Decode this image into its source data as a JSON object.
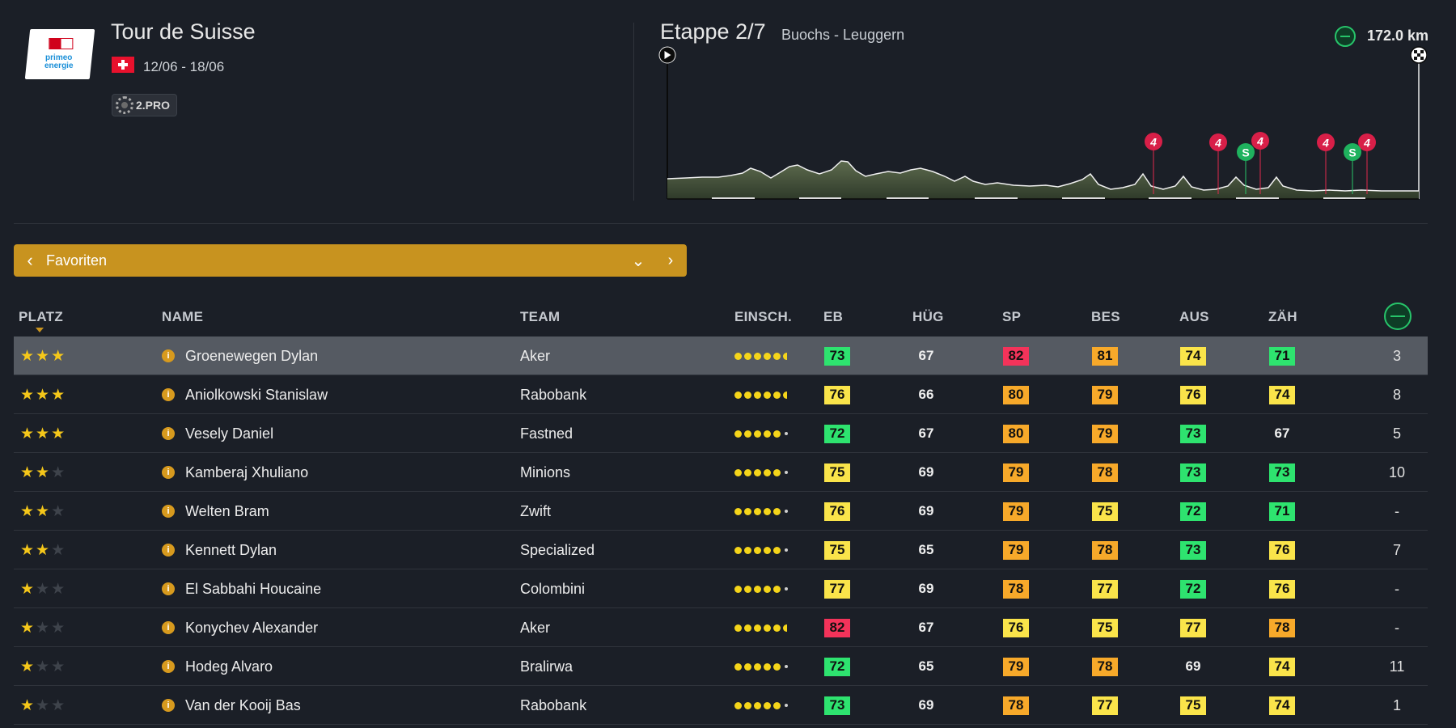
{
  "race": {
    "title": "Tour de Suisse",
    "dates": "12/06 - 18/06",
    "class_label": "2.PRO",
    "logo_text": "primeo energie"
  },
  "stage": {
    "title": "Etappe 2/7",
    "route": "Buochs - Leuggern",
    "distance": "172.0 km",
    "climb_labels": [
      "4",
      "4",
      "4",
      "4",
      "4"
    ],
    "sprint_labels": [
      "S",
      "S"
    ]
  },
  "filter": {
    "label": "Favoriten"
  },
  "columns": {
    "platz": "PLATZ",
    "name": "NAME",
    "team": "TEAM",
    "einsch": "EINSCH.",
    "eb": "EB",
    "hug": "HÜG",
    "sp": "SP",
    "bes": "BES",
    "aus": "AUS",
    "zah": "ZÄH"
  },
  "colors": {
    "green": "#2ee36f",
    "yellow": "#fae44a",
    "orange": "#f7a92a",
    "red": "#f3335a",
    "accent": "#c8931f"
  },
  "riders": [
    {
      "stars": 3,
      "name": "Groenewegen Dylan",
      "team": "Aker",
      "einsch": 5.5,
      "eb": 73,
      "hug": 67,
      "sp": 82,
      "bes": 81,
      "aus": 74,
      "zah": 71,
      "value": "3"
    },
    {
      "stars": 3,
      "name": "Aniolkowski Stanislaw",
      "team": "Rabobank",
      "einsch": 5.5,
      "eb": 76,
      "hug": 66,
      "sp": 80,
      "bes": 79,
      "aus": 76,
      "zah": 74,
      "value": "8"
    },
    {
      "stars": 3,
      "name": "Vesely Daniel",
      "team": "Fastned",
      "einsch": 5,
      "eb": 72,
      "hug": 67,
      "sp": 80,
      "bes": 79,
      "aus": 73,
      "zah": 67,
      "value": "5"
    },
    {
      "stars": 2,
      "name": "Kamberaj Xhuliano",
      "team": "Minions",
      "einsch": 5,
      "eb": 75,
      "hug": 69,
      "sp": 79,
      "bes": 78,
      "aus": 73,
      "zah": 73,
      "value": "10"
    },
    {
      "stars": 2,
      "name": "Welten Bram",
      "team": "Zwift",
      "einsch": 5,
      "eb": 76,
      "hug": 69,
      "sp": 79,
      "bes": 75,
      "aus": 72,
      "zah": 71,
      "value": "-"
    },
    {
      "stars": 2,
      "name": "Kennett Dylan",
      "team": "Specialized",
      "einsch": 5,
      "eb": 75,
      "hug": 65,
      "sp": 79,
      "bes": 78,
      "aus": 73,
      "zah": 76,
      "value": "7"
    },
    {
      "stars": 1,
      "name": "El Sabbahi Houcaine",
      "team": "Colombini",
      "einsch": 5,
      "eb": 77,
      "hug": 69,
      "sp": 78,
      "bes": 77,
      "aus": 72,
      "zah": 76,
      "value": "-"
    },
    {
      "stars": 1,
      "name": "Konychev Alexander",
      "team": "Aker",
      "einsch": 5.5,
      "eb": 82,
      "hug": 67,
      "sp": 76,
      "bes": 75,
      "aus": 77,
      "zah": 78,
      "value": "-"
    },
    {
      "stars": 1,
      "name": "Hodeg Alvaro",
      "team": "Bralirwa",
      "einsch": 5,
      "eb": 72,
      "hug": 65,
      "sp": 79,
      "bes": 78,
      "aus": 69,
      "zah": 74,
      "value": "11"
    },
    {
      "stars": 1,
      "name": "Van der Kooij Bas",
      "team": "Rabobank",
      "einsch": 5,
      "eb": 73,
      "hug": 69,
      "sp": 78,
      "bes": 77,
      "aus": 75,
      "zah": 74,
      "value": "1"
    }
  ],
  "cell_colors": [
    {
      "eb": "green",
      "hug": "plain",
      "sp": "red",
      "bes": "orange",
      "aus": "yellow",
      "zah": "green"
    },
    {
      "eb": "yellow",
      "hug": "plain",
      "sp": "orange",
      "bes": "orange",
      "aus": "yellow",
      "zah": "yellow"
    },
    {
      "eb": "green",
      "hug": "plain",
      "sp": "orange",
      "bes": "orange",
      "aus": "green",
      "zah": "plain"
    },
    {
      "eb": "yellow",
      "hug": "plain",
      "sp": "orange",
      "bes": "orange",
      "aus": "green",
      "zah": "green"
    },
    {
      "eb": "yellow",
      "hug": "plain",
      "sp": "orange",
      "bes": "yellow",
      "aus": "green",
      "zah": "green"
    },
    {
      "eb": "yellow",
      "hug": "plain",
      "sp": "orange",
      "bes": "orange",
      "aus": "green",
      "zah": "yellow"
    },
    {
      "eb": "yellow",
      "hug": "plain",
      "sp": "orange",
      "bes": "yellow",
      "aus": "green",
      "zah": "yellow"
    },
    {
      "eb": "red",
      "hug": "plain",
      "sp": "yellow",
      "bes": "yellow",
      "aus": "yellow",
      "zah": "orange"
    },
    {
      "eb": "green",
      "hug": "plain",
      "sp": "orange",
      "bes": "orange",
      "aus": "plain",
      "zah": "yellow"
    },
    {
      "eb": "green",
      "hug": "plain",
      "sp": "orange",
      "bes": "yellow",
      "aus": "yellow",
      "zah": "yellow"
    }
  ]
}
